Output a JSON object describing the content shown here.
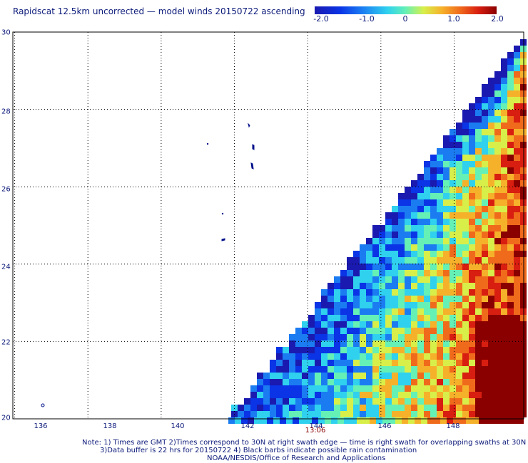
{
  "title": "Rapidscat 12.5km uncorrected — model winds 20150722 ascending",
  "colorbar": {
    "ticks": [
      "-2.0",
      "-1.0",
      "0",
      "1.0",
      "2.0"
    ],
    "values": [
      -2.0,
      -1.0,
      0,
      1.0,
      2.0
    ],
    "range": [
      -2.0,
      2.0
    ],
    "colors": [
      "#1a1ab0",
      "#0a34e6",
      "#1b7cf2",
      "#2fd1ee",
      "#65f0b6",
      "#d8ef4a",
      "#f6b12b",
      "#f06a1c",
      "#d81e10",
      "#8a0000"
    ]
  },
  "axes": {
    "x_ticks": [
      "136",
      "138",
      "140",
      "142",
      "144",
      "146",
      "148"
    ],
    "x_values": [
      136,
      138,
      140,
      142,
      144,
      146,
      148
    ],
    "y_ticks": [
      "20",
      "22",
      "24",
      "26",
      "28",
      "30"
    ],
    "y_values": [
      20,
      22,
      24,
      26,
      28,
      30
    ],
    "lon_range": [
      135.95,
      149.9
    ],
    "lat_range": [
      20,
      30
    ],
    "grid": "dotted"
  },
  "swath": {
    "time_label": "13:06",
    "time_lon": 144
  },
  "notes": [
    "Note: 1) Times are GMT 2)Times correspond to 30N at right swath edge — time is right swath for overlapping swaths at 30N",
    "3)Data buffer is 22 hrs for 20150722 4) Black barbs indicate possible rain contamination",
    "NOAA/NESDIS/Office of Research and Applications"
  ],
  "land_color": "#00108a"
}
